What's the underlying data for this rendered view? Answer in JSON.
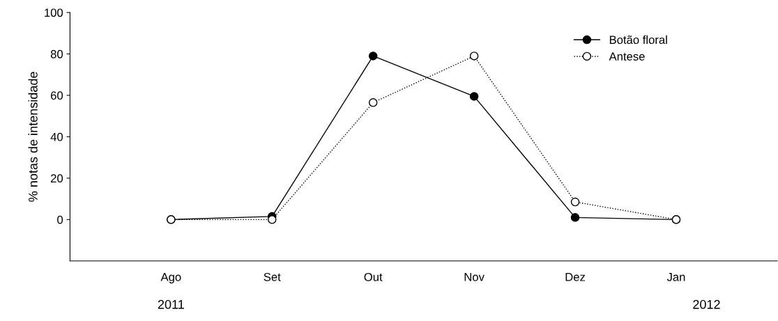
{
  "chart_data": {
    "type": "line",
    "ylabel": "% notas de intensidade",
    "categories": [
      "Ago",
      "Set",
      "Out",
      "Nov",
      "Dez",
      "Jan"
    ],
    "series": [
      {
        "name": "Botão floral",
        "color": "#000000",
        "line_style": "solid",
        "values": [
          0,
          1.5,
          79,
          59.5,
          1,
          0
        ]
      },
      {
        "name": "Antese",
        "color": "#000000",
        "line_style": "dotted",
        "values": [
          0,
          0,
          56.5,
          79,
          8.5,
          0
        ]
      }
    ],
    "ylim": [
      -20,
      100
    ],
    "yticks": [
      0,
      20,
      40,
      60,
      80,
      100
    ],
    "grid": false,
    "legend": "top right",
    "marker": "circle",
    "annotations": [
      "2011",
      "2012"
    ]
  }
}
